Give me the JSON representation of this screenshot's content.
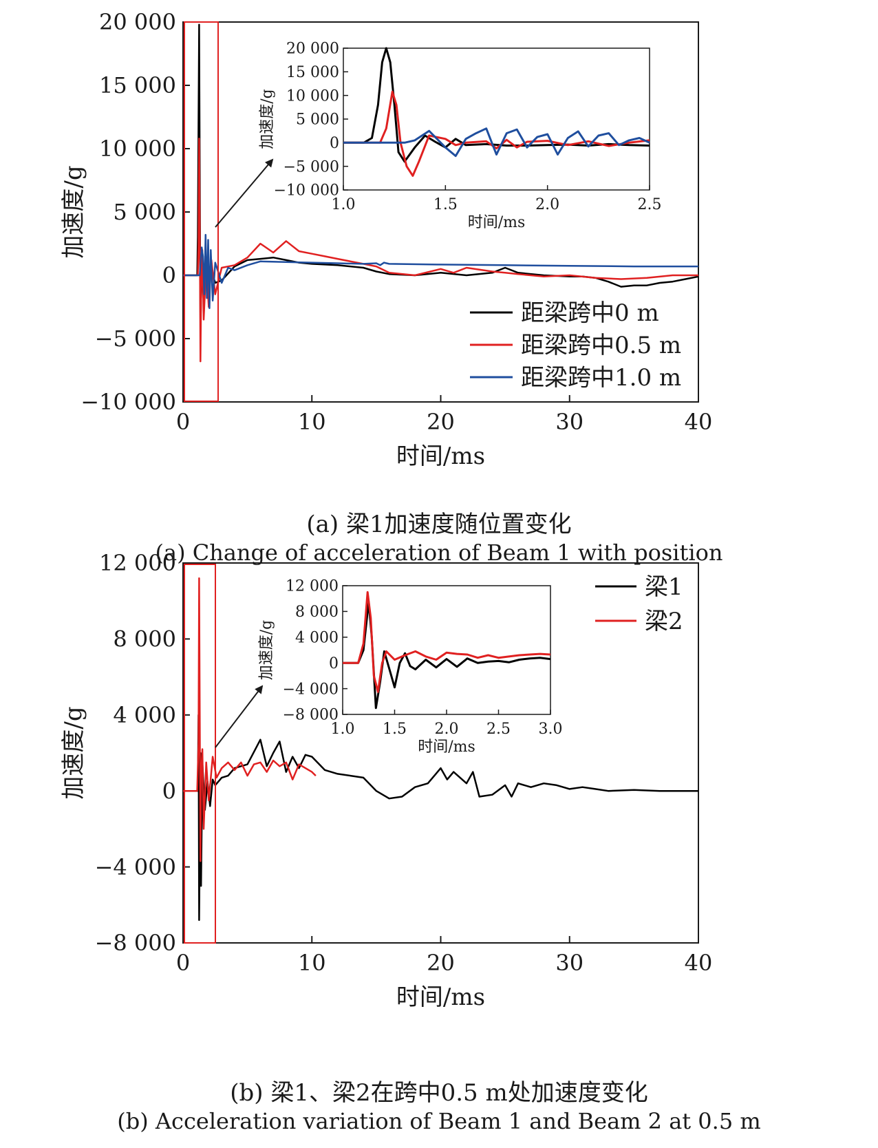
{
  "chart_data": [
    {
      "type": "line",
      "panel": "a",
      "xlabel": "时间/ms",
      "ylabel": "加速度/g",
      "xlim": [
        0,
        40
      ],
      "ylim": [
        -10000,
        20000
      ],
      "x_ticks": [
        0,
        10,
        20,
        30,
        40
      ],
      "x_tick_labels": [
        "0",
        "10",
        "20",
        "30",
        "40"
      ],
      "y_ticks": [
        20000,
        15000,
        10000,
        5000,
        0,
        -5000,
        -10000
      ],
      "y_tick_labels": [
        "20 000",
        "15 000",
        "10 000",
        "5 000",
        "0",
        "−5 000",
        "−10 000"
      ],
      "legend_position": "bottom-right",
      "series": [
        {
          "name": "距梁跨中0 m",
          "color": "#000000",
          "x": [
            0,
            1.1,
            1.15,
            1.2,
            1.25,
            1.3,
            1.35,
            1.4,
            1.5,
            1.6,
            1.7,
            1.8,
            2,
            2.2,
            2.5,
            3,
            4,
            5,
            6,
            7,
            8,
            9,
            10,
            12,
            14,
            15,
            16,
            18,
            20,
            22,
            24,
            25,
            26,
            28,
            30,
            31,
            32,
            33,
            34,
            35,
            36,
            37,
            38,
            39,
            40
          ],
          "y": [
            0,
            0,
            3000,
            12000,
            19800,
            8000,
            -4000,
            -2000,
            1200,
            500,
            -800,
            300,
            200,
            400,
            -600,
            -400,
            700,
            1200,
            1300,
            1400,
            1200,
            1000,
            900,
            800,
            600,
            300,
            100,
            0,
            200,
            0,
            200,
            600,
            200,
            0,
            -100,
            -100,
            -200,
            -500,
            -900,
            -800,
            -800,
            -600,
            -500,
            -300,
            -100
          ]
        },
        {
          "name": "距梁跨中0.5 m",
          "color": "#e02020",
          "x": [
            0,
            1.15,
            1.2,
            1.25,
            1.3,
            1.35,
            1.4,
            1.45,
            1.5,
            1.6,
            1.8,
            2,
            2.2,
            2.5,
            3,
            4,
            5,
            6,
            7,
            8,
            9,
            10,
            11,
            12,
            14,
            15,
            16,
            18,
            20,
            21,
            22,
            24,
            25,
            26,
            28,
            30,
            32,
            34,
            36,
            38,
            40
          ],
          "y": [
            0,
            0,
            2500,
            10800,
            4000,
            -6800,
            -2000,
            1500,
            2000,
            -3500,
            800,
            -2500,
            1200,
            -1500,
            600,
            800,
            1400,
            2500,
            1800,
            2700,
            1900,
            1700,
            1500,
            1300,
            900,
            700,
            200,
            0,
            500,
            200,
            600,
            300,
            200,
            100,
            -100,
            0,
            -200,
            -300,
            -200,
            0,
            0
          ]
        },
        {
          "name": "距梁跨中1.0 m",
          "color": "#1f4e9e",
          "x": [
            0,
            1.3,
            1.35,
            1.45,
            1.55,
            1.65,
            1.75,
            1.85,
            1.95,
            2.05,
            2.15,
            2.3,
            2.5,
            3,
            3.5,
            4,
            5,
            6,
            8,
            10,
            12,
            14,
            15,
            15.3,
            15.6,
            16,
            20,
            25,
            30,
            35,
            40
          ],
          "y": [
            0,
            0,
            800,
            2200,
            1500,
            -1500,
            3200,
            -1800,
            2800,
            -2600,
            2000,
            -2000,
            1000,
            -600,
            600,
            400,
            800,
            1100,
            1050,
            1000,
            950,
            900,
            950,
            800,
            1000,
            900,
            850,
            800,
            750,
            700,
            700
          ]
        }
      ],
      "inset": {
        "xlabel": "时间/ms",
        "ylabel": "加速度/g",
        "xlim": [
          1.0,
          2.5
        ],
        "ylim": [
          -10000,
          20000
        ],
        "x_ticks": [
          1.0,
          1.5,
          2.0,
          2.5
        ],
        "x_tick_labels": [
          "1.0",
          "1.5",
          "2.0",
          "2.5"
        ],
        "y_ticks": [
          20000,
          15000,
          10000,
          5000,
          0,
          -5000,
          -10000
        ],
        "y_tick_labels": [
          "20 000",
          "15 000",
          "10 000",
          "5 000",
          "0",
          "−5 000",
          "−10 000"
        ],
        "series": [
          {
            "color": "#000000",
            "x": [
              1.0,
              1.1,
              1.14,
              1.17,
              1.19,
              1.21,
              1.23,
              1.25,
              1.27,
              1.3,
              1.35,
              1.4,
              1.45,
              1.5,
              1.55,
              1.6,
              1.7,
              1.8,
              1.9,
              2.0,
              2.1,
              2.2,
              2.3,
              2.4,
              2.5
            ],
            "y": [
              0,
              0,
              1000,
              8000,
              17000,
              20000,
              17000,
              8000,
              -2000,
              -4000,
              -1000,
              1500,
              200,
              -1000,
              800,
              -500,
              -300,
              -600,
              -600,
              -500,
              -400,
              -600,
              -300,
              -500,
              -600
            ]
          },
          {
            "color": "#e02020",
            "x": [
              1.0,
              1.18,
              1.21,
              1.24,
              1.26,
              1.28,
              1.31,
              1.34,
              1.37,
              1.42,
              1.5,
              1.55,
              1.6,
              1.7,
              1.75,
              1.8,
              1.85,
              1.9,
              2.0,
              2.1,
              2.2,
              2.3,
              2.4,
              2.5
            ],
            "y": [
              0,
              0,
              3000,
              10800,
              8000,
              0,
              -5000,
              -7000,
              -4000,
              1500,
              800,
              -500,
              0,
              300,
              -1200,
              600,
              -1000,
              200,
              400,
              -500,
              300,
              -700,
              0,
              500
            ]
          },
          {
            "color": "#1f4e9e",
            "x": [
              1.0,
              1.3,
              1.35,
              1.42,
              1.5,
              1.55,
              1.6,
              1.65,
              1.7,
              1.75,
              1.8,
              1.85,
              1.9,
              1.95,
              2.0,
              2.05,
              2.1,
              2.15,
              2.2,
              2.25,
              2.3,
              2.35,
              2.4,
              2.45,
              2.5
            ],
            "y": [
              0,
              0,
              500,
              2500,
              -1000,
              -2800,
              800,
              2000,
              3000,
              -2500,
              2000,
              2800,
              -1000,
              1200,
              1800,
              -2500,
              1000,
              2400,
              -800,
              1500,
              2000,
              -500,
              500,
              1000,
              0
            ]
          }
        ]
      }
    },
    {
      "type": "line",
      "panel": "b",
      "xlabel": "时间/ms",
      "ylabel": "加速度/g",
      "xlim": [
        0,
        40
      ],
      "ylim": [
        -8000,
        12000
      ],
      "x_ticks": [
        0,
        10,
        20,
        30,
        40
      ],
      "x_tick_labels": [
        "0",
        "10",
        "20",
        "30",
        "40"
      ],
      "y_ticks": [
        12000,
        8000,
        4000,
        0,
        -4000,
        -8000
      ],
      "y_tick_labels": [
        "12 000",
        "8 000",
        "4 000",
        "0",
        "−4 000",
        "−8 000"
      ],
      "legend_position": "top-right",
      "series": [
        {
          "name": "梁1",
          "color": "#000000",
          "x": [
            0,
            1.15,
            1.2,
            1.25,
            1.3,
            1.35,
            1.4,
            1.5,
            1.7,
            1.9,
            2.1,
            2.3,
            2.5,
            3,
            3.5,
            4,
            5,
            6,
            6.5,
            7,
            7.5,
            8,
            8.5,
            9,
            9.5,
            10,
            11,
            12,
            13,
            14,
            15,
            16,
            17,
            18,
            19,
            20,
            20.5,
            21,
            22,
            22.5,
            23,
            24,
            25,
            25.5,
            26,
            27,
            28,
            29,
            30,
            31,
            32,
            33,
            35,
            37,
            40
          ],
          "y": [
            0,
            0,
            4000,
            -6800,
            -3000,
            2000,
            -5000,
            1500,
            -1000,
            500,
            -800,
            600,
            300,
            700,
            800,
            1200,
            1400,
            2700,
            1300,
            2000,
            2600,
            1000,
            1800,
            1200,
            1900,
            1800,
            1100,
            900,
            800,
            700,
            0,
            -400,
            -300,
            200,
            400,
            1200,
            600,
            1000,
            400,
            1000,
            -300,
            -200,
            300,
            -300,
            400,
            200,
            400,
            300,
            100,
            200,
            100,
            0,
            50,
            0,
            0
          ]
        },
        {
          "name": "梁2",
          "color": "#e02020",
          "x": [
            0,
            1.1,
            1.2,
            1.25,
            1.3,
            1.35,
            1.4,
            1.5,
            1.6,
            1.8,
            2.0,
            2.3,
            2.6,
            3,
            3.5,
            4,
            4.5,
            5,
            5.5,
            6,
            6.5,
            7,
            7.5,
            8,
            8.5,
            9,
            9.5,
            10,
            10.3
          ],
          "y": [
            0,
            0,
            2500,
            11200,
            4000,
            -3700,
            800,
            2200,
            -2000,
            1500,
            -500,
            1800,
            700,
            1200,
            1500,
            1100,
            1500,
            800,
            1400,
            1500,
            1000,
            1600,
            1300,
            1500,
            600,
            1400,
            1200,
            1000,
            800
          ]
        }
      ],
      "inset": {
        "xlabel": "时间/ms",
        "ylabel": "加速度/g",
        "xlim": [
          1.0,
          3.0
        ],
        "ylim": [
          -8000,
          12000
        ],
        "x_ticks": [
          1.0,
          1.5,
          2.0,
          2.5,
          3.0
        ],
        "x_tick_labels": [
          "1.0",
          "1.5",
          "2.0",
          "2.5",
          "3.0"
        ],
        "y_ticks": [
          12000,
          8000,
          4000,
          0,
          -4000,
          -8000
        ],
        "y_tick_labels": [
          "12 000",
          "8 000",
          "4 000",
          "0",
          "−4 000",
          "−8 000"
        ],
        "series": [
          {
            "color": "#000000",
            "x": [
              1.0,
              1.15,
              1.2,
              1.25,
              1.28,
              1.32,
              1.36,
              1.4,
              1.45,
              1.5,
              1.55,
              1.6,
              1.65,
              1.7,
              1.8,
              1.9,
              2.0,
              2.1,
              2.2,
              2.3,
              2.4,
              2.5,
              2.6,
              2.7,
              2.8,
              2.9,
              3.0
            ],
            "y": [
              0,
              0,
              2000,
              9500,
              4000,
              -7000,
              -3000,
              1800,
              -1000,
              -3800,
              0,
              1500,
              -500,
              -1000,
              500,
              -700,
              600,
              -600,
              700,
              0,
              200,
              300,
              100,
              500,
              700,
              800,
              600
            ]
          },
          {
            "color": "#e02020",
            "x": [
              1.0,
              1.15,
              1.2,
              1.24,
              1.27,
              1.3,
              1.34,
              1.38,
              1.42,
              1.5,
              1.6,
              1.7,
              1.8,
              1.9,
              2.0,
              2.1,
              2.2,
              2.3,
              2.4,
              2.5,
              2.6,
              2.7,
              2.8,
              2.9,
              3.0
            ],
            "y": [
              0,
              0,
              3000,
              11000,
              7000,
              -2000,
              -4500,
              0,
              1800,
              500,
              1200,
              1800,
              1000,
              500,
              1600,
              1400,
              1300,
              800,
              1200,
              800,
              1000,
              1200,
              1300,
              1400,
              1300
            ]
          }
        ]
      }
    }
  ],
  "captions": {
    "a_cn": "(a) 梁1加速度随位置变化",
    "a_en": "(a) Change of acceleration of Beam 1 with position",
    "b_cn": "(b) 梁1、梁2在跨中0.5 m处加速度变化",
    "b_en": "(b) Acceleration variation of Beam 1 and Beam 2 at 0.5 m"
  }
}
